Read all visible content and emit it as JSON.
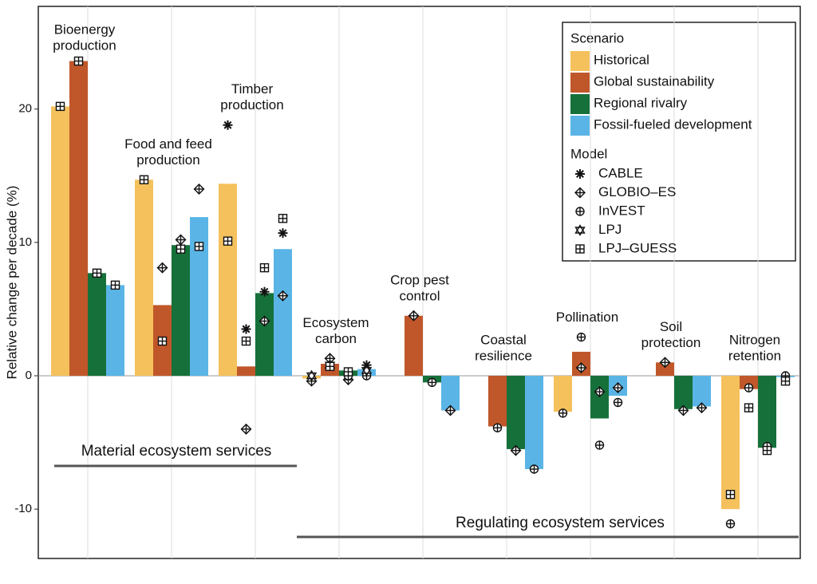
{
  "chart_data": {
    "type": "bar",
    "y_label": "Relative change per decade (%)",
    "categories": [
      [
        "Bioenergy",
        "production"
      ],
      [
        "Food and feed",
        "production"
      ],
      [
        "Timber",
        "production"
      ],
      [
        "Ecosystem",
        "carbon"
      ],
      [
        "Crop pest",
        "control"
      ],
      [
        "Coastal",
        "resilience"
      ],
      [
        "Pollination"
      ],
      [
        "Soil",
        "protection"
      ],
      [
        "Nitrogen",
        "retention"
      ]
    ],
    "ylim": [
      -13.7,
      27.7
    ],
    "yticks": [
      -10,
      0,
      10,
      20
    ],
    "legend_title": "Scenario",
    "model_title": "Model",
    "models": [
      "CABLE",
      "GLOBIO–ES",
      "InVEST",
      "LPJ",
      "LPJ–GUESS"
    ],
    "annotations": [
      "Material ecosystem services",
      "Regulating ecosystem services"
    ],
    "series": [
      {
        "name": "Historical",
        "color": "#f5c15c",
        "values": [
          20.2,
          14.7,
          14.4,
          -0.2,
          null,
          null,
          -2.7,
          null,
          -10.0
        ],
        "markers": [
          [
            null,
            null,
            18.8,
            null,
            null,
            null,
            null,
            null,
            null
          ],
          [
            null,
            null,
            null,
            -0.4,
            null,
            null,
            null,
            null,
            null
          ],
          [
            null,
            null,
            null,
            null,
            null,
            null,
            -2.8,
            null,
            -11.1
          ],
          [
            null,
            null,
            null,
            0.0,
            null,
            null,
            null,
            null,
            null
          ],
          [
            20.2,
            14.7,
            10.1,
            null,
            null,
            null,
            null,
            null,
            -8.9
          ]
        ]
      },
      {
        "name": "Global sustainability",
        "color": "#c0572a",
        "values": [
          23.6,
          5.3,
          0.7,
          0.9,
          4.5,
          -3.8,
          1.8,
          1.0,
          -1.0
        ],
        "markers": [
          [
            null,
            null,
            3.5,
            null,
            null,
            null,
            null,
            null,
            null
          ],
          [
            null,
            8.1,
            -4.0,
            1.3,
            4.5,
            null,
            0.6,
            1.0,
            null
          ],
          [
            null,
            null,
            null,
            null,
            null,
            -3.9,
            2.9,
            null,
            -0.9
          ],
          [
            null,
            null,
            null,
            0.8,
            null,
            null,
            null,
            null,
            null
          ],
          [
            23.6,
            2.6,
            2.6,
            0.7,
            null,
            null,
            null,
            null,
            -2.4
          ]
        ]
      },
      {
        "name": "Regional rivalry",
        "color": "#16703a",
        "values": [
          7.7,
          9.8,
          6.2,
          0.4,
          -0.5,
          -5.5,
          -3.2,
          -2.5,
          -5.4
        ],
        "markers": [
          [
            null,
            null,
            6.3,
            null,
            null,
            null,
            null,
            null,
            null
          ],
          [
            null,
            10.2,
            4.1,
            -0.3,
            null,
            -5.6,
            -1.2,
            -2.6,
            null
          ],
          [
            null,
            null,
            null,
            0.0,
            -0.5,
            null,
            -5.2,
            null,
            -5.3
          ],
          [
            null,
            null,
            null,
            null,
            null,
            null,
            null,
            null,
            null
          ],
          [
            7.7,
            9.5,
            8.1,
            0.3,
            null,
            null,
            null,
            null,
            -5.6
          ]
        ]
      },
      {
        "name": "Fossil-fueled development",
        "color": "#5ab5e6",
        "values": [
          6.8,
          11.9,
          9.5,
          0.5,
          -2.6,
          -7.0,
          -1.5,
          -2.3,
          -0.1
        ],
        "markers": [
          [
            null,
            null,
            10.7,
            0.8,
            null,
            null,
            null,
            null,
            null
          ],
          [
            null,
            14.0,
            6.0,
            null,
            -2.6,
            null,
            -0.9,
            -2.4,
            null
          ],
          [
            null,
            null,
            null,
            0.0,
            null,
            -7.0,
            -2.0,
            null,
            0.0
          ],
          [
            null,
            null,
            null,
            0.4,
            null,
            null,
            null,
            null,
            null
          ],
          [
            6.8,
            9.7,
            11.8,
            null,
            null,
            null,
            null,
            null,
            -0.4
          ]
        ]
      }
    ]
  }
}
